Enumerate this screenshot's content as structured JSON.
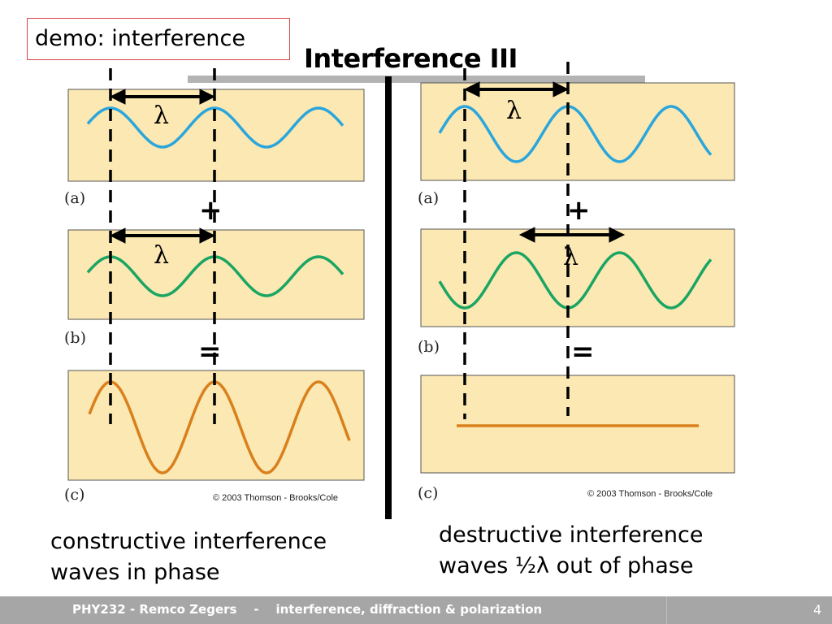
{
  "slide": {
    "demo_label": "demo: interference",
    "title": "Interference III",
    "left_figure": {
      "panel_labels": [
        "(a)",
        "(b)",
        "(c)"
      ],
      "lambda_a": "λ",
      "lambda_b": "λ",
      "plus": "+",
      "equals": "=",
      "copyright": "© 2003 Thomson - Brooks/Cole",
      "caption_line1": "constructive interference",
      "caption_line2": "waves in phase"
    },
    "right_figure": {
      "panel_labels": [
        "(a)",
        "(b)",
        "(c)"
      ],
      "lambda_a": "λ",
      "lambda_b": "λ",
      "plus": "+",
      "equals": "=",
      "copyright": "© 2003 Thomson - Brooks/Cole",
      "caption_line1": "destructive interference",
      "caption_line2": "waves ½λ out of phase"
    },
    "colors": {
      "panel_bg": "#fbe8b3",
      "wave_a": "#2aa6dc",
      "wave_b": "#1aa563",
      "wave_result": "#d9801c"
    }
  },
  "footer": {
    "text": "PHY232 - Remco Zegers    -    interference, diffraction & polarization",
    "page_number": "4"
  }
}
